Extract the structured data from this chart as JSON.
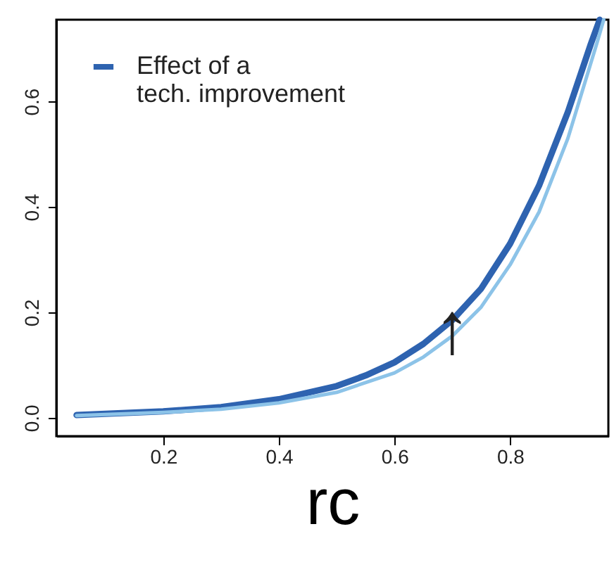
{
  "chart_data": {
    "type": "line",
    "xlabel": "rc",
    "series": [
      {
        "name": "Effect of a tech. improvement",
        "color": "#2e63b0",
        "x": [
          0.05,
          0.2,
          0.3,
          0.4,
          0.5,
          0.55,
          0.6,
          0.65,
          0.7,
          0.75,
          0.8,
          0.85,
          0.9,
          0.94,
          0.955
        ],
        "values": [
          0.005,
          0.012,
          0.02,
          0.035,
          0.06,
          0.08,
          0.105,
          0.14,
          0.185,
          0.245,
          0.33,
          0.44,
          0.58,
          0.71,
          0.755
        ]
      },
      {
        "color": "#8cc3e8",
        "x": [
          0.05,
          0.2,
          0.3,
          0.4,
          0.5,
          0.6,
          0.65,
          0.7,
          0.75,
          0.8,
          0.85,
          0.9,
          0.95,
          0.962
        ],
        "values": [
          0.004,
          0.01,
          0.016,
          0.028,
          0.048,
          0.085,
          0.115,
          0.155,
          0.21,
          0.29,
          0.39,
          0.53,
          0.71,
          0.755
        ]
      }
    ],
    "annotations": [
      {
        "text": "↑",
        "x": 0.7,
        "y": 0.165
      }
    ],
    "xlim": [
      0.015,
      0.97
    ],
    "ylim": [
      -0.035,
      0.755
    ],
    "xticks": [
      0.2,
      0.4,
      0.6,
      0.8
    ],
    "yticks": [
      {
        "value": 0,
        "label": "0.0"
      },
      0.2,
      0.4,
      0.6
    ],
    "grid": false,
    "legend": "top left",
    "marker": "none",
    "line_style": "solid"
  }
}
